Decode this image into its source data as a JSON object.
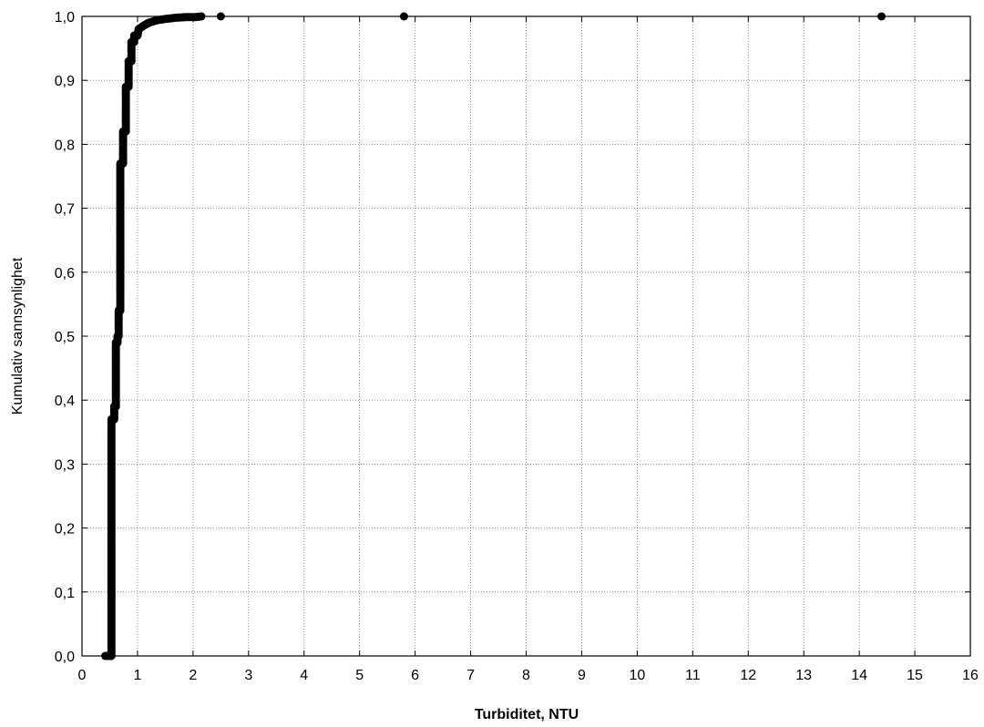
{
  "chart_data": {
    "type": "scatter",
    "title": "",
    "xlabel": "Turbiditet, NTU",
    "ylabel": "Kumulativ sannsynlighet",
    "xlim": [
      0,
      16
    ],
    "ylim": [
      0,
      1
    ],
    "x_ticks": [
      "0",
      "1",
      "2",
      "3",
      "4",
      "5",
      "6",
      "7",
      "8",
      "9",
      "10",
      "11",
      "12",
      "13",
      "14",
      "15",
      "16"
    ],
    "y_ticks": [
      "0,0",
      "0,1",
      "0,2",
      "0,3",
      "0,4",
      "0,5",
      "0,6",
      "0,7",
      "0,8",
      "0,9",
      "1,0"
    ],
    "grid": true,
    "marker_color": "#000000",
    "cdf_steps": [
      [
        0.42,
        0.0
      ],
      [
        0.47,
        0.0
      ],
      [
        0.52,
        0.0
      ],
      [
        0.53,
        0.0
      ],
      [
        0.53,
        0.37
      ],
      [
        0.58,
        0.37
      ],
      [
        0.58,
        0.39
      ],
      [
        0.61,
        0.39
      ],
      [
        0.61,
        0.49
      ],
      [
        0.64,
        0.49
      ],
      [
        0.64,
        0.5
      ],
      [
        0.66,
        0.5
      ],
      [
        0.66,
        0.54
      ],
      [
        0.69,
        0.54
      ],
      [
        0.69,
        0.77
      ],
      [
        0.74,
        0.77
      ],
      [
        0.74,
        0.82
      ],
      [
        0.79,
        0.82
      ],
      [
        0.79,
        0.89
      ],
      [
        0.84,
        0.89
      ],
      [
        0.84,
        0.93
      ],
      [
        0.89,
        0.93
      ],
      [
        0.89,
        0.96
      ],
      [
        0.94,
        0.96
      ],
      [
        0.94,
        0.97
      ],
      [
        1.0,
        0.97
      ],
      [
        1.02,
        0.98
      ],
      [
        1.1,
        0.985
      ],
      [
        1.2,
        0.99
      ],
      [
        1.35,
        0.994
      ],
      [
        1.5,
        0.996
      ],
      [
        1.7,
        0.998
      ],
      [
        1.9,
        0.999
      ],
      [
        2.05,
        0.999
      ],
      [
        2.15,
        1.0
      ]
    ],
    "outliers": [
      {
        "x": 2.5,
        "y": 1.0
      },
      {
        "x": 5.8,
        "y": 1.0
      },
      {
        "x": 14.4,
        "y": 1.0
      }
    ]
  }
}
